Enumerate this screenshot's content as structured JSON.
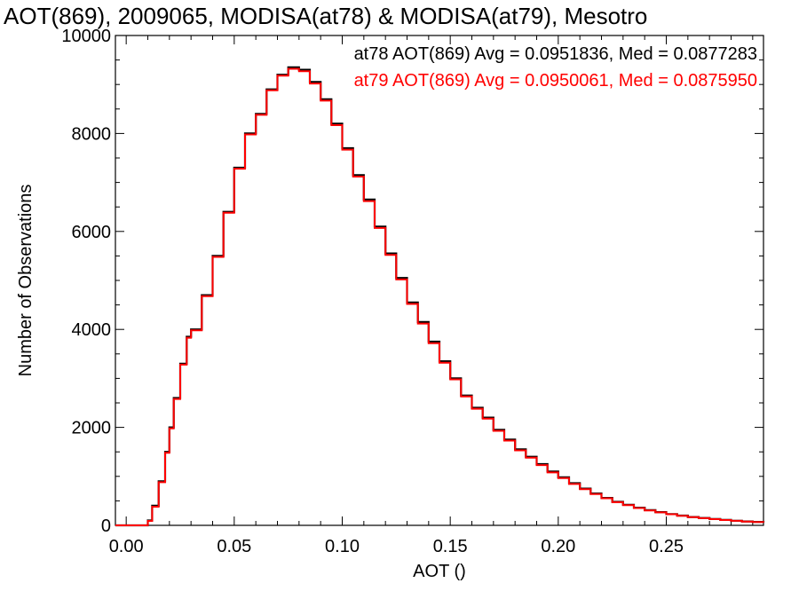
{
  "chart_data": {
    "type": "line",
    "title": "AOT(869), 2009065, MODISA(at78) & MODISA(at79), Mesotro",
    "xlabel": "AOT ()",
    "ylabel": "Number of Observations",
    "xlim": [
      -0.005,
      0.295
    ],
    "ylim": [
      0,
      10000
    ],
    "x_ticks": [
      "0.00",
      "0.05",
      "0.10",
      "0.15",
      "0.20",
      "0.25"
    ],
    "y_ticks": [
      "0",
      "2000",
      "4000",
      "6000",
      "8000",
      "10000"
    ],
    "grid": false,
    "step": true,
    "x": [
      0.0,
      0.005,
      0.01,
      0.012,
      0.015,
      0.018,
      0.02,
      0.022,
      0.025,
      0.028,
      0.03,
      0.035,
      0.04,
      0.045,
      0.05,
      0.055,
      0.06,
      0.065,
      0.07,
      0.075,
      0.08,
      0.085,
      0.09,
      0.095,
      0.1,
      0.105,
      0.11,
      0.115,
      0.12,
      0.125,
      0.13,
      0.135,
      0.14,
      0.145,
      0.15,
      0.155,
      0.16,
      0.165,
      0.17,
      0.175,
      0.18,
      0.185,
      0.19,
      0.195,
      0.2,
      0.205,
      0.21,
      0.215,
      0.22,
      0.225,
      0.23,
      0.235,
      0.24,
      0.245,
      0.25,
      0.255,
      0.26,
      0.265,
      0.27,
      0.275,
      0.28,
      0.285,
      0.29,
      0.295
    ],
    "series": [
      {
        "name": "at78",
        "color": "#000000",
        "values": [
          0,
          0,
          100,
          400,
          900,
          1500,
          2000,
          2600,
          3300,
          3850,
          4000,
          4700,
          5500,
          6400,
          7300,
          8000,
          8400,
          8900,
          9200,
          9350,
          9300,
          9050,
          8700,
          8200,
          7700,
          7150,
          6650,
          6100,
          5550,
          5050,
          4550,
          4150,
          3750,
          3350,
          3000,
          2650,
          2400,
          2200,
          1950,
          1750,
          1550,
          1400,
          1250,
          1100,
          980,
          860,
          750,
          650,
          560,
          480,
          420,
          360,
          310,
          270,
          230,
          200,
          170,
          150,
          130,
          110,
          95,
          80,
          70,
          60
        ]
      },
      {
        "name": "at79",
        "color": "#ff0000",
        "values": [
          0,
          0,
          90,
          380,
          880,
          1480,
          1980,
          2580,
          3280,
          3830,
          3980,
          4680,
          5480,
          6380,
          7280,
          7980,
          8380,
          8880,
          9180,
          9320,
          9270,
          9020,
          8670,
          8170,
          7670,
          7120,
          6620,
          6070,
          5520,
          5020,
          4520,
          4120,
          3720,
          3320,
          2980,
          2630,
          2380,
          2180,
          1930,
          1730,
          1530,
          1380,
          1230,
          1080,
          965,
          845,
          738,
          640,
          552,
          472,
          412,
          354,
          305,
          265,
          226,
          196,
          167,
          147,
          127,
          108,
          93,
          78,
          68,
          58
        ]
      }
    ],
    "annotations": [
      {
        "text": "at78 AOT(869) Avg = 0.0951836, Med = 0.0877283",
        "color": "#000000"
      },
      {
        "text": "at79 AOT(869) Avg = 0.0950061, Med = 0.0875950",
        "color": "#ff0000"
      }
    ]
  }
}
